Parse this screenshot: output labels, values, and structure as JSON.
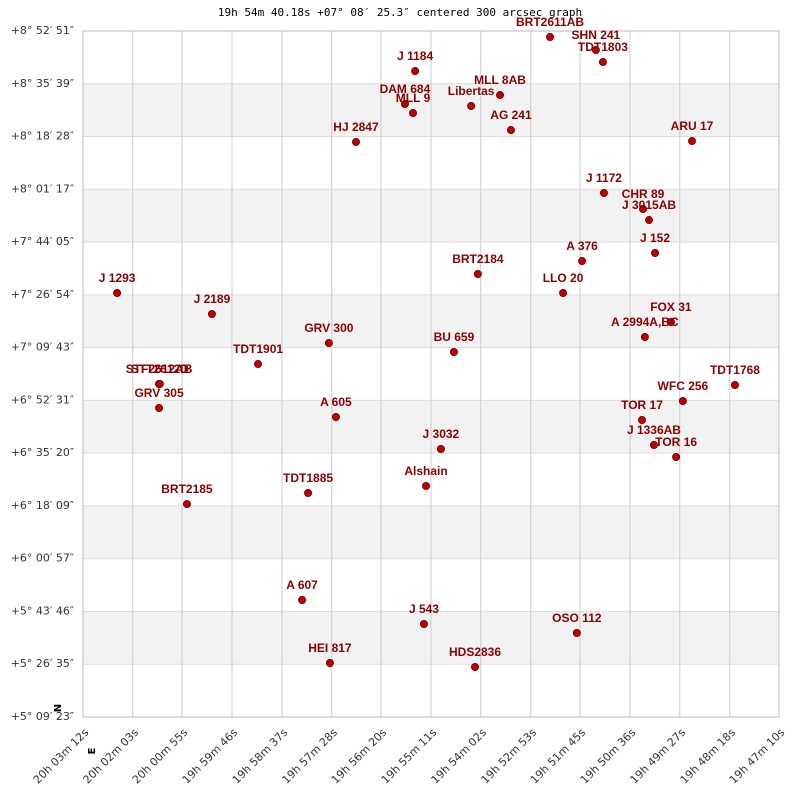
{
  "chart_data": {
    "type": "scatter",
    "title": "19h 54m 40.18s +07° 08′ 25.3″ centered 300 arcsec graph",
    "north_label": "N",
    "east_label": "E",
    "color": "#c00000",
    "label_color": "#8b0000",
    "grid": true,
    "banded": true,
    "xlim": [
      20.0533,
      19.7861
    ],
    "ylim": [
      5.1564,
      8.8808
    ],
    "xticks": [
      {
        "value": 20.0533,
        "label": "20h 03m 12s"
      },
      {
        "value": 20.0342,
        "label": "20h 02m 03s"
      },
      {
        "value": 20.0153,
        "label": "20h 00m 55s"
      },
      {
        "value": 19.9961,
        "label": "19h 59m 46s"
      },
      {
        "value": 19.9769,
        "label": "19h 58m 37s"
      },
      {
        "value": 19.9578,
        "label": "19h 57m 28s"
      },
      {
        "value": 19.9389,
        "label": "19h 56m 20s"
      },
      {
        "value": 19.9197,
        "label": "19h 55m 11s"
      },
      {
        "value": 19.9006,
        "label": "19h 54m 02s"
      },
      {
        "value": 19.8814,
        "label": "19h 52m 53s"
      },
      {
        "value": 19.8625,
        "label": "19h 51m 45s"
      },
      {
        "value": 19.8433,
        "label": "19h 50m 36s"
      },
      {
        "value": 19.8242,
        "label": "19h 49m 27s"
      },
      {
        "value": 19.805,
        "label": "19h 48m 18s"
      },
      {
        "value": 19.7861,
        "label": "19h 47m 10s"
      }
    ],
    "yticks": [
      {
        "value": 8.8808,
        "label": "+8° 52′ 51″"
      },
      {
        "value": 8.5942,
        "label": "+8° 35′ 39″"
      },
      {
        "value": 8.3078,
        "label": "+8° 18′ 28″"
      },
      {
        "value": 8.0214,
        "label": "+8° 01′ 17″"
      },
      {
        "value": 7.7347,
        "label": "+7° 44′ 05″"
      },
      {
        "value": 7.4483,
        "label": "+7° 26′ 54″"
      },
      {
        "value": 7.1619,
        "label": "+7° 09′ 43″"
      },
      {
        "value": 6.8753,
        "label": "+6° 52′ 31″"
      },
      {
        "value": 6.5889,
        "label": "+6° 35′ 20″"
      },
      {
        "value": 6.3025,
        "label": "+6° 18′ 09″"
      },
      {
        "value": 6.0158,
        "label": "+6° 00′ 57″"
      },
      {
        "value": 5.7294,
        "label": "+5° 43′ 46″"
      },
      {
        "value": 5.4431,
        "label": "+5° 26′ 35″"
      },
      {
        "value": 5.1564,
        "label": "+5° 09′ 23″"
      }
    ],
    "points": [
      {
        "name": "BRT2611AB",
        "x": 19.874,
        "y": 8.8481
      },
      {
        "name": "SHN 241",
        "x": 19.8564,
        "y": 8.7775
      },
      {
        "name": "TDT1803",
        "x": 19.8537,
        "y": 8.7124
      },
      {
        "name": "J 1184",
        "x": 19.9258,
        "y": 8.6635
      },
      {
        "name": "MLL 8AB",
        "x": 19.8932,
        "y": 8.5332
      },
      {
        "name": "DAM 684",
        "x": 19.9297,
        "y": 8.4844
      },
      {
        "name": "MLL 9",
        "x": 19.9266,
        "y": 8.4355
      },
      {
        "name": "Libertas",
        "x": 19.9043,
        "y": 8.4735
      },
      {
        "name": "AG 241",
        "x": 19.889,
        "y": 8.3432
      },
      {
        "name": "HJ 2847",
        "x": 19.9485,
        "y": 8.2781
      },
      {
        "name": "ARU 17",
        "x": 19.8195,
        "y": 8.2835
      },
      {
        "name": "J 1172",
        "x": 19.8533,
        "y": 8.0012
      },
      {
        "name": "CHR 89",
        "x": 19.8383,
        "y": 7.9143
      },
      {
        "name": "J 3015AB",
        "x": 19.836,
        "y": 7.8546
      },
      {
        "name": "J 152",
        "x": 19.8337,
        "y": 7.6755
      },
      {
        "name": "A 376",
        "x": 19.8617,
        "y": 7.632
      },
      {
        "name": "BRT2184",
        "x": 19.9017,
        "y": 7.5614
      },
      {
        "name": "LLO 20",
        "x": 19.869,
        "y": 7.4583
      },
      {
        "name": "J 1293",
        "x": 20.0402,
        "y": 7.4583
      },
      {
        "name": "J 2189",
        "x": 20.0038,
        "y": 7.3443
      },
      {
        "name": "FOX 31",
        "x": 19.8276,
        "y": 7.3009
      },
      {
        "name": "A 2994A,BC",
        "x": 19.8376,
        "y": 7.2194
      },
      {
        "name": "GRV 300",
        "x": 19.9589,
        "y": 7.1868
      },
      {
        "name": "BU 659",
        "x": 19.9109,
        "y": 7.138
      },
      {
        "name": "TDT1901",
        "x": 19.9861,
        "y": 7.0728
      },
      {
        "name": "STF2612AB",
        "x": 20.0241,
        "y": 6.9643
      },
      {
        "name": "STT2612D",
        "x": 20.0238,
        "y": 6.9645
      },
      {
        "name": "TDT1768",
        "x": 19.803,
        "y": 6.9588
      },
      {
        "name": "WFC 256",
        "x": 19.823,
        "y": 6.872
      },
      {
        "name": "GRV 305",
        "x": 20.0241,
        "y": 6.834
      },
      {
        "name": "A 605",
        "x": 19.9562,
        "y": 6.7851
      },
      {
        "name": "TOR 17",
        "x": 19.8387,
        "y": 6.7688
      },
      {
        "name": "J 1336AB",
        "x": 19.8341,
        "y": 6.6331
      },
      {
        "name": "J 3032",
        "x": 19.9159,
        "y": 6.6114
      },
      {
        "name": "TOR 16",
        "x": 19.8256,
        "y": 6.5679
      },
      {
        "name": "Alshain",
        "x": 19.9216,
        "y": 6.4105
      },
      {
        "name": "TDT1885",
        "x": 19.9669,
        "y": 6.3725
      },
      {
        "name": "BRT2185",
        "x": 20.0134,
        "y": 6.3128
      },
      {
        "name": "A 607",
        "x": 19.9692,
        "y": 5.7916
      },
      {
        "name": "J 543",
        "x": 19.9224,
        "y": 5.6613
      },
      {
        "name": "OSO 112",
        "x": 19.8637,
        "y": 5.6124
      },
      {
        "name": "HEI 817",
        "x": 19.9585,
        "y": 5.4496
      },
      {
        "name": "HDS2836",
        "x": 19.9028,
        "y": 5.4279
      }
    ]
  }
}
